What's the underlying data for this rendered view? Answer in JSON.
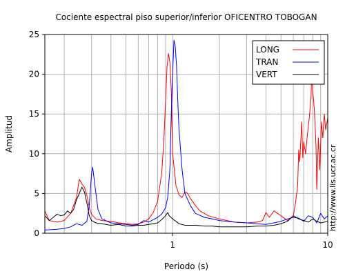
{
  "chart_data": {
    "type": "line",
    "title": "Cociente espectral piso superior/inferior OFICENTRO TOBOGAN",
    "xlabel": "Periodo (s)",
    "ylabel": "Amplitud",
    "xscale": "log",
    "xlim": [
      0.15,
      10
    ],
    "ylim": [
      0,
      25
    ],
    "x_ticks": [
      1,
      10
    ],
    "x_tick_labels": [
      "1",
      "10"
    ],
    "y_ticks": [
      0,
      5,
      10,
      15,
      20,
      25
    ],
    "y_tick_labels": [
      "0",
      "5",
      "10",
      "15",
      "20",
      "25"
    ],
    "grid": true,
    "legend_position": "top-right",
    "series": [
      {
        "name": "LONG",
        "color": "#ff0000",
        "points": [
          [
            0.15,
            2.8
          ],
          [
            0.16,
            1.6
          ],
          [
            0.18,
            1.4
          ],
          [
            0.2,
            1.6
          ],
          [
            0.22,
            2.5
          ],
          [
            0.24,
            4.5
          ],
          [
            0.25,
            6.8
          ],
          [
            0.26,
            6.2
          ],
          [
            0.27,
            5.8
          ],
          [
            0.28,
            4.8
          ],
          [
            0.29,
            3.2
          ],
          [
            0.3,
            2.4
          ],
          [
            0.32,
            1.8
          ],
          [
            0.35,
            1.6
          ],
          [
            0.4,
            1.5
          ],
          [
            0.45,
            1.3
          ],
          [
            0.5,
            1.2
          ],
          [
            0.55,
            1.1
          ],
          [
            0.6,
            1.2
          ],
          [
            0.65,
            1.4
          ],
          [
            0.7,
            1.8
          ],
          [
            0.75,
            2.6
          ],
          [
            0.8,
            4.0
          ],
          [
            0.85,
            7.5
          ],
          [
            0.88,
            12.0
          ],
          [
            0.9,
            16.5
          ],
          [
            0.92,
            21.0
          ],
          [
            0.94,
            22.6
          ],
          [
            0.96,
            21.5
          ],
          [
            0.98,
            18.0
          ],
          [
            1.0,
            10.0
          ],
          [
            1.05,
            6.0
          ],
          [
            1.1,
            4.8
          ],
          [
            1.15,
            4.5
          ],
          [
            1.2,
            5.2
          ],
          [
            1.25,
            5.0
          ],
          [
            1.3,
            4.4
          ],
          [
            1.4,
            3.5
          ],
          [
            1.5,
            2.8
          ],
          [
            1.7,
            2.2
          ],
          [
            2.0,
            1.8
          ],
          [
            2.5,
            1.4
          ],
          [
            3.0,
            1.3
          ],
          [
            3.5,
            1.4
          ],
          [
            3.8,
            1.6
          ],
          [
            4.0,
            2.6
          ],
          [
            4.2,
            2.0
          ],
          [
            4.5,
            2.8
          ],
          [
            5.0,
            2.2
          ],
          [
            5.5,
            1.6
          ],
          [
            6.0,
            2.2
          ],
          [
            6.2,
            3.8
          ],
          [
            6.4,
            6.0
          ],
          [
            6.5,
            10.5
          ],
          [
            6.6,
            9.0
          ],
          [
            6.8,
            14.0
          ],
          [
            6.9,
            9.5
          ],
          [
            7.0,
            11.5
          ],
          [
            7.2,
            10.0
          ],
          [
            7.4,
            12.5
          ],
          [
            7.6,
            14.5
          ],
          [
            7.8,
            17.0
          ],
          [
            7.9,
            20.8
          ],
          [
            8.0,
            18.0
          ],
          [
            8.2,
            15.5
          ],
          [
            8.4,
            11.0
          ],
          [
            8.5,
            5.5
          ],
          [
            8.7,
            12.0
          ],
          [
            8.9,
            8.0
          ],
          [
            9.1,
            14.0
          ],
          [
            9.3,
            12.0
          ],
          [
            9.5,
            15.0
          ],
          [
            9.7,
            13.0
          ],
          [
            10.0,
            14.5
          ]
        ]
      },
      {
        "name": "TRAN",
        "color": "#0000ff",
        "points": [
          [
            0.15,
            0.4
          ],
          [
            0.18,
            0.5
          ],
          [
            0.2,
            0.6
          ],
          [
            0.22,
            0.8
          ],
          [
            0.24,
            1.2
          ],
          [
            0.26,
            1.0
          ],
          [
            0.28,
            1.5
          ],
          [
            0.29,
            3.5
          ],
          [
            0.3,
            7.5
          ],
          [
            0.305,
            8.3
          ],
          [
            0.31,
            7.2
          ],
          [
            0.32,
            5.0
          ],
          [
            0.33,
            3.0
          ],
          [
            0.35,
            1.8
          ],
          [
            0.4,
            1.3
          ],
          [
            0.45,
            1.2
          ],
          [
            0.5,
            1.1
          ],
          [
            0.55,
            1.0
          ],
          [
            0.6,
            1.1
          ],
          [
            0.65,
            1.6
          ],
          [
            0.7,
            1.4
          ],
          [
            0.75,
            1.7
          ],
          [
            0.8,
            2.0
          ],
          [
            0.85,
            2.4
          ],
          [
            0.9,
            3.2
          ],
          [
            0.93,
            4.5
          ],
          [
            0.96,
            8.0
          ],
          [
            0.98,
            15.0
          ],
          [
            1.0,
            20.0
          ],
          [
            1.02,
            24.3
          ],
          [
            1.04,
            23.5
          ],
          [
            1.06,
            21.0
          ],
          [
            1.08,
            16.5
          ],
          [
            1.1,
            13.0
          ],
          [
            1.15,
            8.0
          ],
          [
            1.2,
            5.0
          ],
          [
            1.3,
            3.5
          ],
          [
            1.4,
            2.5
          ],
          [
            1.6,
            2.0
          ],
          [
            1.8,
            1.8
          ],
          [
            2.0,
            1.6
          ],
          [
            2.5,
            1.4
          ],
          [
            3.0,
            1.3
          ],
          [
            3.5,
            1.2
          ],
          [
            4.0,
            1.1
          ],
          [
            4.5,
            1.3
          ],
          [
            5.0,
            1.5
          ],
          [
            5.5,
            1.8
          ],
          [
            6.0,
            2.0
          ],
          [
            6.5,
            1.9
          ],
          [
            7.0,
            1.5
          ],
          [
            7.5,
            2.2
          ],
          [
            8.0,
            2.0
          ],
          [
            8.5,
            1.3
          ],
          [
            9.0,
            2.5
          ],
          [
            9.5,
            1.8
          ],
          [
            10.0,
            2.2
          ]
        ]
      },
      {
        "name": "VERT",
        "color": "#000000",
        "points": [
          [
            0.15,
            2.2
          ],
          [
            0.16,
            1.6
          ],
          [
            0.17,
            2.0
          ],
          [
            0.18,
            2.4
          ],
          [
            0.19,
            2.2
          ],
          [
            0.2,
            2.3
          ],
          [
            0.21,
            2.8
          ],
          [
            0.22,
            2.5
          ],
          [
            0.23,
            3.0
          ],
          [
            0.24,
            4.2
          ],
          [
            0.25,
            5.0
          ],
          [
            0.26,
            5.8
          ],
          [
            0.27,
            5.2
          ],
          [
            0.28,
            3.8
          ],
          [
            0.29,
            2.2
          ],
          [
            0.3,
            1.6
          ],
          [
            0.32,
            1.3
          ],
          [
            0.35,
            1.2
          ],
          [
            0.4,
            1.0
          ],
          [
            0.45,
            1.1
          ],
          [
            0.5,
            0.9
          ],
          [
            0.55,
            0.9
          ],
          [
            0.6,
            1.0
          ],
          [
            0.65,
            1.0
          ],
          [
            0.7,
            1.1
          ],
          [
            0.75,
            1.2
          ],
          [
            0.8,
            1.3
          ],
          [
            0.85,
            1.7
          ],
          [
            0.9,
            2.2
          ],
          [
            0.93,
            2.6
          ],
          [
            0.95,
            2.2
          ],
          [
            1.0,
            1.8
          ],
          [
            1.05,
            1.5
          ],
          [
            1.1,
            1.2
          ],
          [
            1.2,
            1.0
          ],
          [
            1.4,
            1.0
          ],
          [
            1.6,
            0.9
          ],
          [
            1.8,
            0.9
          ],
          [
            2.0,
            0.8
          ],
          [
            2.5,
            0.8
          ],
          [
            3.0,
            0.8
          ],
          [
            3.5,
            0.9
          ],
          [
            4.0,
            0.9
          ],
          [
            4.5,
            1.0
          ],
          [
            5.0,
            1.2
          ],
          [
            5.5,
            1.5
          ],
          [
            6.0,
            2.2
          ],
          [
            6.5,
            1.8
          ],
          [
            7.0,
            1.6
          ],
          [
            7.5,
            1.4
          ],
          [
            8.0,
            1.8
          ],
          [
            8.5,
            1.5
          ],
          [
            9.0,
            1.3
          ],
          [
            9.5,
            1.4
          ],
          [
            10.0,
            1.5
          ]
        ]
      }
    ]
  },
  "credit": "http://www.lis.ucr.ac.cr"
}
